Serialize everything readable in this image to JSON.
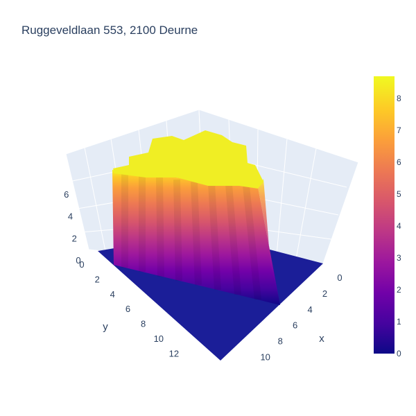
{
  "chart_data": {
    "type": "surface",
    "title": "Ruggeveldlaan 553, 2100 Deurne",
    "x_axis": {
      "label": "x",
      "ticks": [
        0,
        2,
        4,
        6,
        8,
        10
      ],
      "range": [
        0,
        11
      ]
    },
    "y_axis": {
      "label": "y",
      "ticks": [
        0,
        2,
        4,
        6,
        8,
        10,
        12
      ],
      "range": [
        0,
        13
      ]
    },
    "z_axis": {
      "label": "",
      "ticks": [
        0,
        2,
        4,
        6
      ],
      "range": [
        0,
        8.7
      ]
    },
    "surface": {
      "ground_z": 0,
      "block_top_z": 8.5,
      "block_x_range": [
        1,
        9
      ],
      "block_y_range": [
        1,
        9
      ]
    },
    "colorscale": {
      "name": "Plasma",
      "stops": [
        "#0d0887",
        "#46039f",
        "#7201a8",
        "#9c179e",
        "#bd3786",
        "#d8576b",
        "#ed7953",
        "#fb9f3a",
        "#fdca26",
        "#f0f921"
      ],
      "range": [
        0,
        8.7
      ],
      "ticks": [
        0,
        1,
        2,
        3,
        4,
        5,
        6,
        7,
        8
      ]
    },
    "grid": true,
    "colorbar_position": "right"
  }
}
